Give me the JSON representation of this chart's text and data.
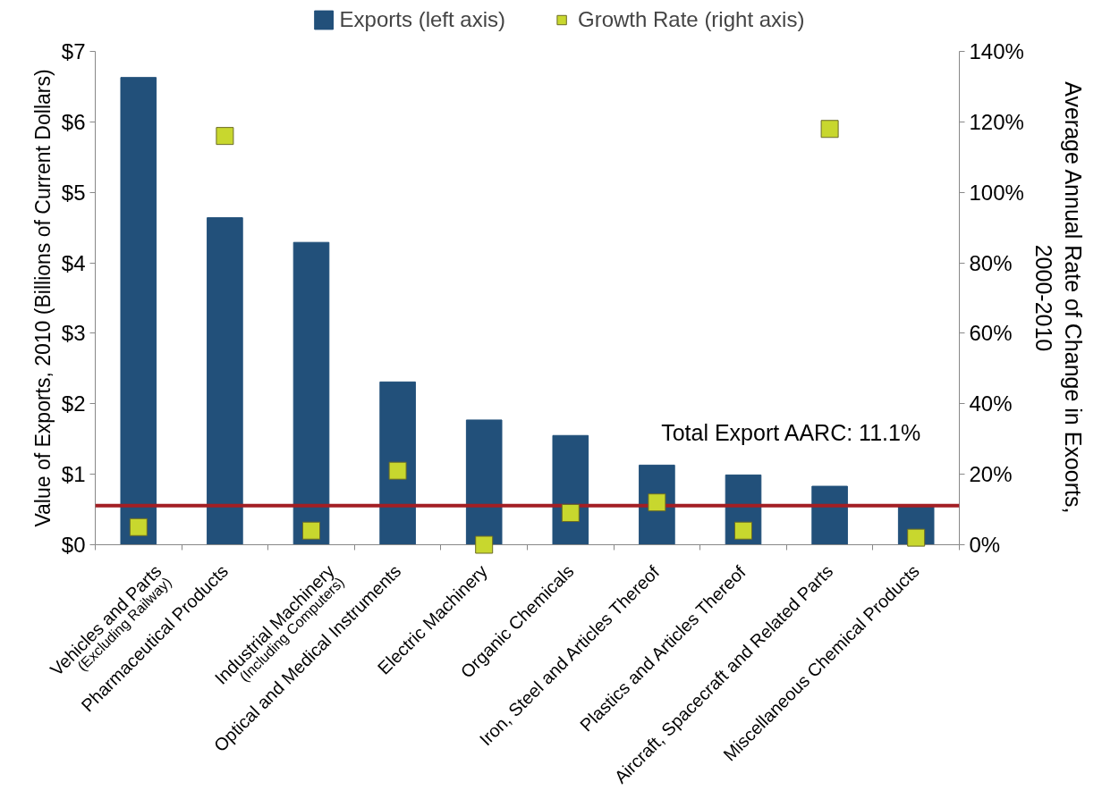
{
  "chart_data": {
    "type": "bar",
    "categories": [
      "Vehicles and Parts\n(Excluding Railway)",
      "Pharmaceutical Products",
      "Industrial Machinery\n(Including Computers)",
      "Optical and Medical Instruments",
      "Electric Machinery",
      "Organic Chemicals",
      "Iron, Steel and Articles Thereof",
      "Plastics and Articles Thereof",
      "Aircraft, Spacecraft and Related Parts",
      "Miscellaneous Chemical Products"
    ],
    "series": [
      {
        "name": "Exports (left axis)",
        "color": "#22507a",
        "values": [
          6.63,
          4.64,
          4.29,
          2.31,
          1.77,
          1.55,
          1.13,
          0.99,
          0.83,
          0.54
        ]
      },
      {
        "name": "Growth Rate (right axis)",
        "type": "scatter",
        "axis": "y2",
        "color": "#c8d72e",
        "values": [
          5,
          116,
          4,
          21,
          0,
          9,
          12,
          4,
          118,
          2
        ]
      }
    ],
    "ylabel": "Value of Exports, 2010 (Billions of Current Dollars)",
    "y2label": "Average Annual Rate of Change in Exoorts,\n2000-2010",
    "ylim": [
      0,
      7
    ],
    "yticks": [
      {
        "value": 0,
        "label": "$0"
      },
      {
        "value": 1,
        "label": "$1"
      },
      {
        "value": 2,
        "label": "$2"
      },
      {
        "value": 3,
        "label": "$3"
      },
      {
        "value": 4,
        "label": "$4"
      },
      {
        "value": 5,
        "label": "$5"
      },
      {
        "value": 6,
        "label": "$6"
      },
      {
        "value": 7,
        "label": "$7"
      }
    ],
    "y2lim": [
      0,
      140
    ],
    "y2ticks": [
      {
        "value": 0,
        "label": "0%"
      },
      {
        "value": 20,
        "label": "20%"
      },
      {
        "value": 40,
        "label": "40%"
      },
      {
        "value": 60,
        "label": "60%"
      },
      {
        "value": 80,
        "label": "80%"
      },
      {
        "value": 100,
        "label": "100%"
      },
      {
        "value": 120,
        "label": "120%"
      },
      {
        "value": 140,
        "label": "140%"
      }
    ],
    "ref_lines": [
      {
        "axis": "y2",
        "value": 11.1,
        "label": "Total Export AARC: 11.1%",
        "color": "#a31f24"
      }
    ],
    "marker": "square",
    "legend": "top"
  }
}
